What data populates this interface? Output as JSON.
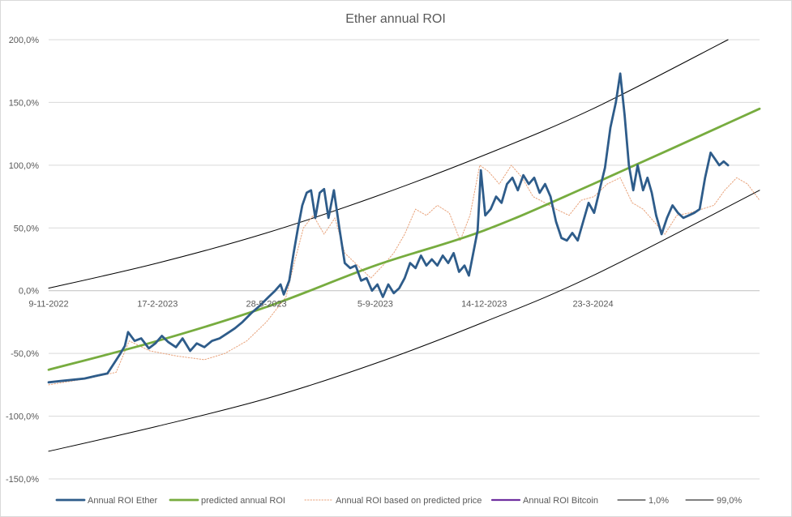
{
  "chart_data": {
    "type": "line",
    "title": "Ether annual ROI",
    "y_tick_labels": [
      "200,0%",
      "150,0%",
      "100,0%",
      "50,0%",
      "0,0%",
      "-50,0%",
      "-100,0%",
      "-150,0%"
    ],
    "y_tick_values": [
      200,
      150,
      100,
      50,
      0,
      -50,
      -100,
      -150
    ],
    "ylim": [
      -150,
      200
    ],
    "x_tick_labels": [
      "9-11-2022",
      "17-2-2023",
      "28-5-2023",
      "5-9-2023",
      "14-12-2023",
      "23-3-2024"
    ],
    "x_tick_dates": [
      "2022-11-09",
      "2023-02-17",
      "2023-05-28",
      "2023-09-05",
      "2023-12-14",
      "2024-03-23"
    ],
    "xlim": [
      "2022-11-09",
      "2024-08-23"
    ],
    "grid": true,
    "legend_position": "bottom",
    "series": [
      {
        "name": "Annual ROI Ether",
        "color": "#2e5c8a",
        "style": "solid-thick",
        "points": [
          [
            "2022-11-09",
            -73
          ],
          [
            "2022-11-20",
            -72
          ],
          [
            "2022-12-01",
            -71
          ],
          [
            "2022-12-12",
            -70
          ],
          [
            "2022-12-22",
            -68
          ],
          [
            "2023-01-02",
            -66
          ],
          [
            "2023-01-08",
            -58
          ],
          [
            "2023-01-14",
            -50
          ],
          [
            "2023-01-18",
            -44
          ],
          [
            "2023-01-21",
            -33
          ],
          [
            "2023-01-27",
            -40
          ],
          [
            "2023-02-02",
            -38
          ],
          [
            "2023-02-09",
            -46
          ],
          [
            "2023-02-15",
            -42
          ],
          [
            "2023-02-21",
            -36
          ],
          [
            "2023-02-27",
            -41
          ],
          [
            "2023-03-06",
            -45
          ],
          [
            "2023-03-12",
            -38
          ],
          [
            "2023-03-19",
            -48
          ],
          [
            "2023-03-25",
            -42
          ],
          [
            "2023-04-01",
            -45
          ],
          [
            "2023-04-08",
            -40
          ],
          [
            "2023-04-15",
            -38
          ],
          [
            "2023-04-22",
            -34
          ],
          [
            "2023-04-29",
            -30
          ],
          [
            "2023-05-06",
            -25
          ],
          [
            "2023-05-14",
            -18
          ],
          [
            "2023-05-22",
            -12
          ],
          [
            "2023-05-30",
            -5
          ],
          [
            "2023-06-05",
            0
          ],
          [
            "2023-06-10",
            5
          ],
          [
            "2023-06-13",
            -3
          ],
          [
            "2023-06-18",
            8
          ],
          [
            "2023-06-22",
            30
          ],
          [
            "2023-06-26",
            50
          ],
          [
            "2023-06-30",
            68
          ],
          [
            "2023-07-04",
            78
          ],
          [
            "2023-07-08",
            80
          ],
          [
            "2023-07-12",
            58
          ],
          [
            "2023-07-16",
            78
          ],
          [
            "2023-07-20",
            81
          ],
          [
            "2023-07-24",
            58
          ],
          [
            "2023-07-29",
            80
          ],
          [
            "2023-08-03",
            50
          ],
          [
            "2023-08-08",
            22
          ],
          [
            "2023-08-13",
            18
          ],
          [
            "2023-08-18",
            20
          ],
          [
            "2023-08-23",
            8
          ],
          [
            "2023-08-28",
            10
          ],
          [
            "2023-09-02",
            0
          ],
          [
            "2023-09-07",
            5
          ],
          [
            "2023-09-12",
            -5
          ],
          [
            "2023-09-17",
            5
          ],
          [
            "2023-09-22",
            -2
          ],
          [
            "2023-09-27",
            2
          ],
          [
            "2023-10-02",
            10
          ],
          [
            "2023-10-07",
            22
          ],
          [
            "2023-10-12",
            18
          ],
          [
            "2023-10-17",
            28
          ],
          [
            "2023-10-22",
            20
          ],
          [
            "2023-10-27",
            25
          ],
          [
            "2023-11-01",
            20
          ],
          [
            "2023-11-06",
            28
          ],
          [
            "2023-11-11",
            22
          ],
          [
            "2023-11-16",
            30
          ],
          [
            "2023-11-21",
            15
          ],
          [
            "2023-11-26",
            20
          ],
          [
            "2023-11-30",
            12
          ],
          [
            "2023-12-04",
            30
          ],
          [
            "2023-12-08",
            48
          ],
          [
            "2023-12-11",
            96
          ],
          [
            "2023-12-15",
            60
          ],
          [
            "2023-12-20",
            65
          ],
          [
            "2023-12-25",
            75
          ],
          [
            "2023-12-30",
            70
          ],
          [
            "2024-01-04",
            85
          ],
          [
            "2024-01-09",
            90
          ],
          [
            "2024-01-14",
            80
          ],
          [
            "2024-01-19",
            92
          ],
          [
            "2024-01-24",
            85
          ],
          [
            "2024-01-29",
            90
          ],
          [
            "2024-02-03",
            78
          ],
          [
            "2024-02-08",
            85
          ],
          [
            "2024-02-13",
            75
          ],
          [
            "2024-02-18",
            55
          ],
          [
            "2024-02-23",
            42
          ],
          [
            "2024-02-28",
            40
          ],
          [
            "2024-03-04",
            46
          ],
          [
            "2024-03-09",
            40
          ],
          [
            "2024-03-14",
            55
          ],
          [
            "2024-03-19",
            70
          ],
          [
            "2024-03-24",
            62
          ],
          [
            "2024-03-29",
            80
          ],
          [
            "2024-04-03",
            98
          ],
          [
            "2024-04-08",
            130
          ],
          [
            "2024-04-13",
            150
          ],
          [
            "2024-04-17",
            173
          ],
          [
            "2024-04-21",
            140
          ],
          [
            "2024-04-25",
            100
          ],
          [
            "2024-04-29",
            80
          ],
          [
            "2024-05-03",
            100
          ],
          [
            "2024-05-08",
            80
          ],
          [
            "2024-05-12",
            90
          ],
          [
            "2024-05-16",
            78
          ],
          [
            "2024-05-20",
            60
          ],
          [
            "2024-05-25",
            45
          ],
          [
            "2024-05-30",
            58
          ],
          [
            "2024-06-04",
            68
          ],
          [
            "2024-06-09",
            62
          ],
          [
            "2024-06-14",
            58
          ],
          [
            "2024-06-19",
            60
          ],
          [
            "2024-06-24",
            62
          ],
          [
            "2024-06-29",
            65
          ],
          [
            "2024-07-04",
            90
          ],
          [
            "2024-07-09",
            110
          ],
          [
            "2024-07-13",
            105
          ],
          [
            "2024-07-17",
            100
          ],
          [
            "2024-07-21",
            103
          ],
          [
            "2024-07-25",
            100
          ]
        ]
      },
      {
        "name": "predicted  annual ROI",
        "color": "#77ac3f",
        "style": "solid-thick",
        "points": [
          [
            "2022-11-09",
            -63
          ],
          [
            "2023-02-17",
            -40
          ],
          [
            "2023-05-28",
            -13
          ],
          [
            "2023-09-05",
            20
          ],
          [
            "2023-12-14",
            48
          ],
          [
            "2024-03-23",
            85
          ],
          [
            "2024-08-23",
            145
          ]
        ]
      },
      {
        "name": "Annual ROI based on predicted price",
        "color": "#e8a27a",
        "style": "dotted",
        "points": [
          [
            "2022-11-09",
            -75
          ],
          [
            "2022-12-15",
            -70
          ],
          [
            "2023-01-10",
            -65
          ],
          [
            "2023-01-22",
            -40
          ],
          [
            "2023-02-10",
            -48
          ],
          [
            "2023-03-06",
            -52
          ],
          [
            "2023-04-01",
            -55
          ],
          [
            "2023-04-20",
            -50
          ],
          [
            "2023-05-10",
            -40
          ],
          [
            "2023-05-28",
            -25
          ],
          [
            "2023-06-15",
            -5
          ],
          [
            "2023-06-22",
            20
          ],
          [
            "2023-07-01",
            50
          ],
          [
            "2023-07-10",
            60
          ],
          [
            "2023-07-20",
            45
          ],
          [
            "2023-07-30",
            58
          ],
          [
            "2023-08-08",
            30
          ],
          [
            "2023-08-20",
            20
          ],
          [
            "2023-09-01",
            10
          ],
          [
            "2023-09-12",
            20
          ],
          [
            "2023-09-22",
            30
          ],
          [
            "2023-10-02",
            45
          ],
          [
            "2023-10-12",
            65
          ],
          [
            "2023-10-22",
            60
          ],
          [
            "2023-11-01",
            68
          ],
          [
            "2023-11-12",
            62
          ],
          [
            "2023-11-22",
            40
          ],
          [
            "2023-12-01",
            60
          ],
          [
            "2023-12-10",
            100
          ],
          [
            "2023-12-18",
            95
          ],
          [
            "2023-12-28",
            85
          ],
          [
            "2024-01-08",
            100
          ],
          [
            "2024-01-18",
            90
          ],
          [
            "2024-01-28",
            75
          ],
          [
            "2024-02-08",
            70
          ],
          [
            "2024-02-18",
            65
          ],
          [
            "2024-03-01",
            60
          ],
          [
            "2024-03-12",
            72
          ],
          [
            "2024-03-24",
            75
          ],
          [
            "2024-04-05",
            85
          ],
          [
            "2024-04-17",
            90
          ],
          [
            "2024-04-28",
            70
          ],
          [
            "2024-05-08",
            65
          ],
          [
            "2024-05-18",
            55
          ],
          [
            "2024-05-28",
            45
          ],
          [
            "2024-06-08",
            60
          ],
          [
            "2024-06-20",
            62
          ],
          [
            "2024-07-01",
            65
          ],
          [
            "2024-07-12",
            68
          ],
          [
            "2024-07-22",
            80
          ],
          [
            "2024-08-02",
            90
          ],
          [
            "2024-08-12",
            85
          ],
          [
            "2024-08-23",
            72
          ]
        ]
      },
      {
        "name": "Annual ROI Bitcoin",
        "color": "#7030a0",
        "style": "solid",
        "points": []
      },
      {
        "name": "1,0%",
        "color": "#000000",
        "style": "solid-thin",
        "points": [
          [
            "2022-11-09",
            -128
          ],
          [
            "2023-02-17",
            -108
          ],
          [
            "2023-05-28",
            -86
          ],
          [
            "2023-09-05",
            -58
          ],
          [
            "2023-12-14",
            -25
          ],
          [
            "2024-03-23",
            12
          ],
          [
            "2024-08-23",
            80
          ]
        ]
      },
      {
        "name": "99,0%",
        "color": "#000000",
        "style": "solid-thin",
        "points": [
          [
            "2022-11-09",
            2
          ],
          [
            "2023-02-17",
            22
          ],
          [
            "2023-05-28",
            46
          ],
          [
            "2023-09-05",
            75
          ],
          [
            "2023-12-14",
            108
          ],
          [
            "2024-03-23",
            145
          ],
          [
            "2024-07-25",
            200
          ]
        ]
      }
    ]
  }
}
